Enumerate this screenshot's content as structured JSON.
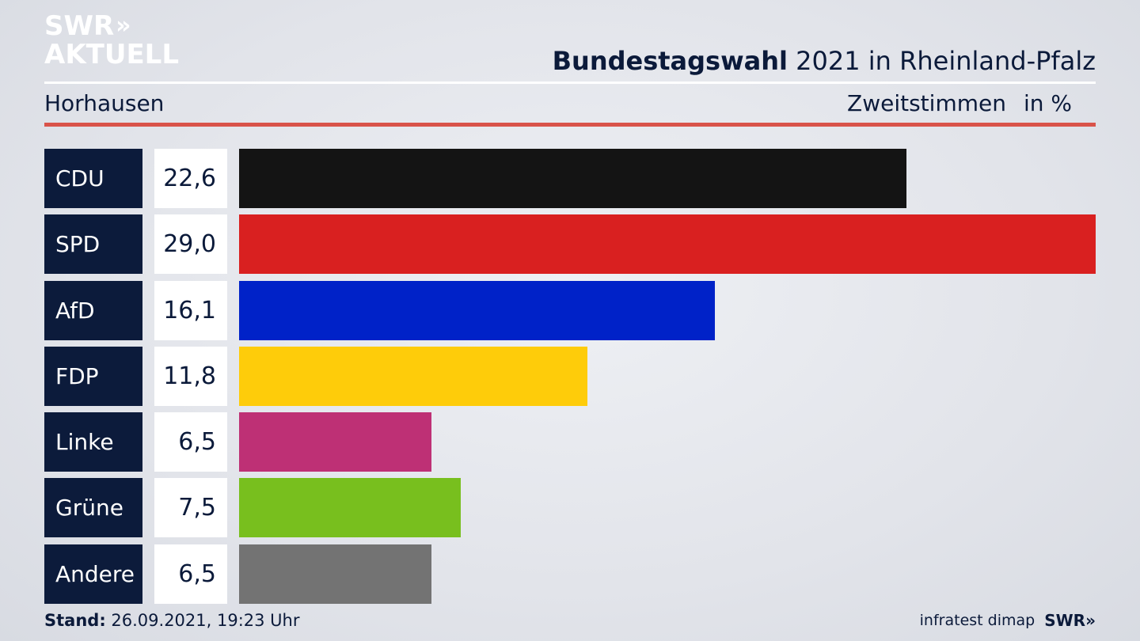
{
  "brand": {
    "line1": "SWR",
    "line2": "AKTUELL",
    "chevrons": "»"
  },
  "header": {
    "title_bold": "Bundestagswahl",
    "title_rest": " 2021 in Rheinland-Pfalz"
  },
  "subheader": {
    "region": "Horhausen",
    "vote_type": "Zweitstimmen",
    "unit": "in %"
  },
  "chart_data": {
    "type": "bar",
    "orientation": "horizontal",
    "title": "Bundestagswahl 2021 in Rheinland-Pfalz",
    "categories": [
      "CDU",
      "SPD",
      "AfD",
      "FDP",
      "Linke",
      "Grüne",
      "Andere"
    ],
    "values": [
      22.6,
      29.0,
      16.1,
      11.8,
      6.5,
      7.5,
      6.5
    ],
    "value_labels": [
      "22,6",
      "29,0",
      "16,1",
      "11,8",
      "6,5",
      "7,5",
      "6,5"
    ],
    "colors": [
      "#141414",
      "#d92020",
      "#0022c8",
      "#fecc0a",
      "#be3075",
      "#78bf1e",
      "#737373"
    ],
    "xlim": [
      0,
      29.0
    ],
    "grid": false,
    "legend": "none"
  },
  "footer": {
    "stand_label": "Stand:",
    "stand_value": " 26.09.2021, 19:23 Uhr",
    "source": "infratest dimap",
    "brand": "SWR",
    "brand_chevrons": "»"
  }
}
